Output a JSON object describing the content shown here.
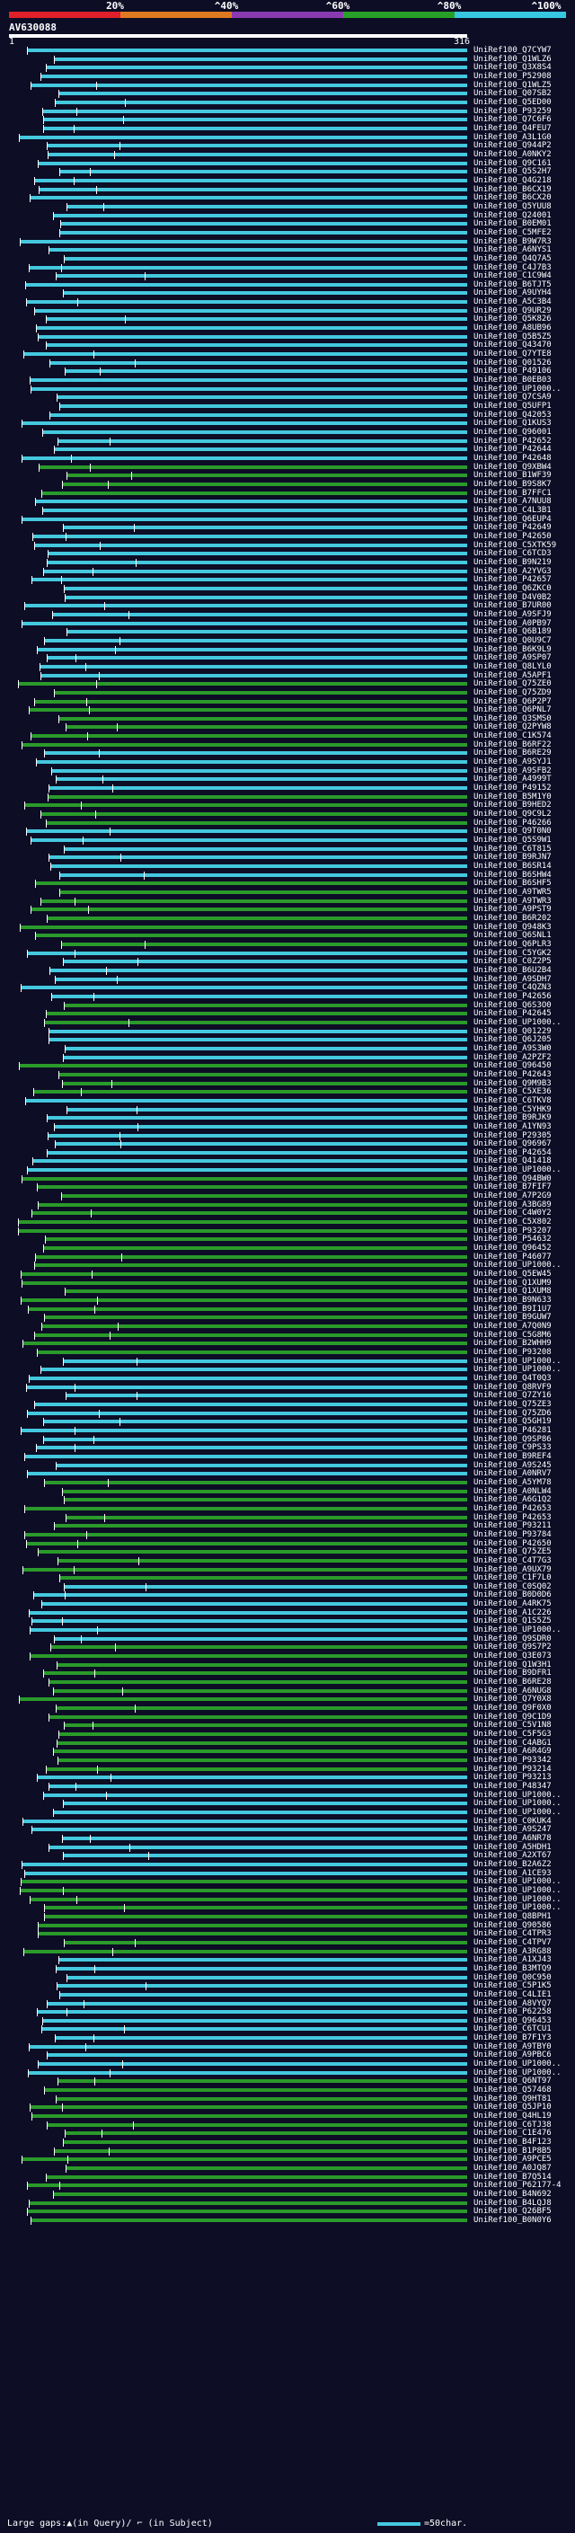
{
  "scale": {
    "labels": [
      "20%",
      "^40%",
      "^60%",
      "^80%",
      "^100%"
    ],
    "colors": [
      "#e0202a",
      "#e07820",
      "#8a3ab0",
      "#28a028",
      "#36c8e0"
    ]
  },
  "query": {
    "name": "AV630088",
    "start": "1",
    "end": "316"
  },
  "footer": {
    "text": "Large gaps:▲(in Query)/ ⌐ (in Subject)",
    "legend": "=50char."
  },
  "colors": {
    "cyan": "#44c8de",
    "green": "#2a9a2a"
  },
  "hits": [
    "UniRef100_Q7CYW7",
    "UniRef100_Q1WLZ6",
    "UniRef100_Q3X8S4",
    "UniRef100_P52908",
    "UniRef100_Q1WLZ5",
    "UniRef100_Q07SB2",
    "UniRef100_Q5ED00",
    "UniRef100_P93259",
    "UniRef100_Q7C6F6",
    "UniRef100_Q4FEU7",
    "UniRef100_A3L1G0",
    "UniRef100_Q944P2",
    "UniRef100_A0NKY2",
    "UniRef100_Q9C161",
    "UniRef100_Q5S2H7",
    "UniRef100_Q4G218",
    "UniRef100_B6CX19",
    "UniRef100_B6CX20",
    "UniRef100_Q5YUU8",
    "UniRef100_Q24001",
    "UniRef100_B0EM01",
    "UniRef100_C5MFE2",
    "UniRef100_B9W7R3",
    "UniRef100_A6NYS1",
    "UniRef100_Q4Q7A5",
    "UniRef100_C4J7B3",
    "UniRef100_C1C9W4",
    "UniRef100_B6TJT5",
    "UniRef100_A9UYH4",
    "UniRef100_A5C3B4",
    "UniRef100_Q9UR29",
    "UniRef100_Q5K826",
    "UniRef100_A8UB96",
    "UniRef100_Q5B5Z5",
    "UniRef100_Q43470",
    "UniRef100_Q7YTE8",
    "UniRef100_Q01526",
    "UniRef100_P49106",
    "UniRef100_B0EB03",
    "UniRef100_UP1000..",
    "UniRef100_Q7CSA9",
    "UniRef100_Q5UFP1",
    "UniRef100_Q42053",
    "UniRef100_Q1KUS3",
    "UniRef100_Q96001",
    "UniRef100_P42652",
    "UniRef100_P42644",
    "UniRef100_P42648",
    "UniRef100_Q9XBW4",
    "UniRef100_B1WF39",
    "UniRef100_B9S8K7",
    "UniRef100_B7FFC1",
    "UniRef100_A7NUU8",
    "UniRef100_C4L3B1",
    "UniRef100_Q6EUP4",
    "UniRef100_P42649",
    "UniRef100_P42650",
    "UniRef100_C5XTK59",
    "UniRef100_C6TCD3",
    "UniRef100_B9N219",
    "UniRef100_A2YVG3",
    "UniRef100_P42657",
    "UniRef100_Q6ZKC0",
    "UniRef100_D4V0B2",
    "UniRef100_B7UR00",
    "UniRef100_A9SFJ9",
    "UniRef100_A0PB97",
    "UniRef100_Q6B189",
    "UniRef100_Q0U9C7",
    "UniRef100_B6K9L9",
    "UniRef100_A9SP07",
    "UniRef100_Q8LYL0",
    "UniRef100_A5APF1",
    "UniRef100_Q75ZE0",
    "UniRef100_Q75ZD9",
    "UniRef100_Q6P2P7",
    "UniRef100_Q6PNL7",
    "UniRef100_Q3SMS0",
    "UniRef100_Q2PYW8",
    "UniRef100_C1K574",
    "UniRef100_B6RF22",
    "UniRef100_B6RE29",
    "UniRef100_A9SYJ1",
    "UniRef100_A9SFB2",
    "UniRef100_A4999T",
    "UniRef100_P49152",
    "UniRef100_B5M1Y0",
    "UniRef100_B9HED2",
    "UniRef100_Q9C9L2",
    "UniRef100_P46266",
    "UniRef100_Q9T0N0",
    "UniRef100_Q5S9W1",
    "UniRef100_C6T815",
    "UniRef100_B9RJN7",
    "UniRef100_B6SR14",
    "UniRef100_B6SHW4",
    "UniRef100_B6SHF5",
    "UniRef100_A9TWR5",
    "UniRef100_A9TWR3",
    "UniRef100_A9PST9",
    "UniRef100_B6R202",
    "UniRef100_Q948K3",
    "UniRef100_Q6SNL1",
    "UniRef100_Q6PLR3",
    "UniRef100_C5YGK2",
    "UniRef100_C0Z2P5",
    "UniRef100_B6U2B4",
    "UniRef100_A9SDH7",
    "UniRef100_C4QZN3",
    "UniRef100_P42656",
    "UniRef100_Q6S3O0",
    "UniRef100_P42645",
    "UniRef100_UP1000..",
    "UniRef100_Q01229",
    "UniRef100_Q6J205",
    "UniRef100_A9S3W0",
    "UniRef100_A2PZF2",
    "UniRef100_Q96450",
    "UniRef100_P42643",
    "UniRef100_Q9M9B3",
    "UniRef100_C5XE36",
    "UniRef100_C6TKV8",
    "UniRef100_C5YHK9",
    "UniRef100_B9RJK9",
    "UniRef100_A1YN93",
    "UniRef100_P29305",
    "UniRef100_Q96967",
    "UniRef100_P42654",
    "UniRef100_Q41418",
    "UniRef100_UP1000..",
    "UniRef100_Q94BW0",
    "UniRef100_B7FIF7",
    "UniRef100_A7P2G9",
    "UniRef100_A3BG89",
    "UniRef100_C4W0Y2",
    "UniRef100_C5X802",
    "UniRef100_P93207",
    "UniRef100_P54632",
    "UniRef100_Q96452",
    "UniRef100_P46077",
    "UniRef100_UP1000..",
    "UniRef100_Q5EW45",
    "UniRef100_Q1XUM9",
    "UniRef100_Q1XUM8",
    "UniRef100_B9N633",
    "UniRef100_B9I1U7",
    "UniRef100_B9GUW7",
    "UniRef100_A7Q0N9",
    "UniRef100_C5G8M6",
    "UniRef100_B2WHH9",
    "UniRef100_P93208",
    "UniRef100_UP1000..",
    "UniRef100_UP1000..",
    "UniRef100_Q4T0Q3",
    "UniRef100_Q8RVF9",
    "UniRef100_Q7ZY16",
    "UniRef100_Q75ZE3",
    "UniRef100_Q75ZD6",
    "UniRef100_Q5GH19",
    "UniRef100_P46281",
    "UniRef100_Q9SP86",
    "UniRef100_C9PS33",
    "UniRef100_B9REF4",
    "UniRef100_A9S245",
    "UniRef100_A0NRV7",
    "UniRef100_A5YM78",
    "UniRef100_A0NLW4",
    "UniRef100_A6G1Q2",
    "UniRef100_P42653",
    "UniRef100_P42653",
    "UniRef100_P93211",
    "UniRef100_P93784",
    "UniRef100_P42650",
    "UniRef100_Q75ZE5",
    "UniRef100_C4T7G3",
    "UniRef100_A9UX79",
    "UniRef100_C1F7L0",
    "UniRef100_C0SQ02",
    "UniRef100_B0D0D6",
    "UniRef100_A4RK75",
    "UniRef100_A1C226",
    "UniRef100_Q1S5Z5",
    "UniRef100_UP1000..",
    "UniRef100_Q9SDR0",
    "UniRef100_Q9S7P2",
    "UniRef100_Q3E073",
    "UniRef100_Q1W3H1",
    "UniRef100_B9DFR1",
    "UniRef100_B6RE28",
    "UniRef100_A6NUG8",
    "UniRef100_Q7Y0X8",
    "UniRef100_Q9F0X0",
    "UniRef100_Q9C1D9",
    "UniRef100_C5V1N8",
    "UniRef100_C5F5G3",
    "UniRef100_C4ABG1",
    "UniRef100_A6R4G9",
    "UniRef100_P93342",
    "UniRef100_P93214",
    "UniRef100_P93213",
    "UniRef100_P48347",
    "UniRef100_UP1000..",
    "UniRef100_UP1000..",
    "UniRef100_UP1000..",
    "UniRef100_C0KUK4",
    "UniRef100_A9S247",
    "UniRef100_A6NR78",
    "UniRef100_A5HDH1",
    "UniRef100_A2XT67",
    "UniRef100_B2A6Z2",
    "UniRef100_A1CE93",
    "UniRef100_UP1000..",
    "UniRef100_UP1000..",
    "UniRef100_UP1000..",
    "UniRef100_UP1000..",
    "UniRef100_Q8BPH1",
    "UniRef100_Q90586",
    "UniRef100_C4TPR3",
    "UniRef100_C4TPV7",
    "UniRef100_A3RG88",
    "UniRef100_A1XJ43",
    "UniRef100_B3MTQ9",
    "UniRef100_Q0C950",
    "UniRef100_C5P1K5",
    "UniRef100_C4LIE1",
    "UniRef100_A8VYQ7",
    "UniRef100_P62258",
    "UniRef100_Q96453",
    "UniRef100_C6TCU1",
    "UniRef100_B7F1Y3",
    "UniRef100_A9TBY0",
    "UniRef100_A9PBC6",
    "UniRef100_UP1000..",
    "UniRef100_UP1000..",
    "UniRef100_Q6NT97",
    "UniRef100_Q57468",
    "UniRef100_Q9HT81",
    "UniRef100_Q5JP10",
    "UniRef100_Q4HL19",
    "UniRef100_C6TJ38",
    "UniRef100_C1E476",
    "UniRef100_B4F123",
    "UniRef100_B1P8B5",
    "UniRef100_A9PCE5",
    "UniRef100_A0JQ87",
    "UniRef100_B7Q514",
    "UniRef100_P62177-4",
    "UniRef100_B4N692",
    "UniRef100_B4LQJ8",
    "UniRef100_Q26BF5",
    "UniRef100_B0N0Y6"
  ]
}
